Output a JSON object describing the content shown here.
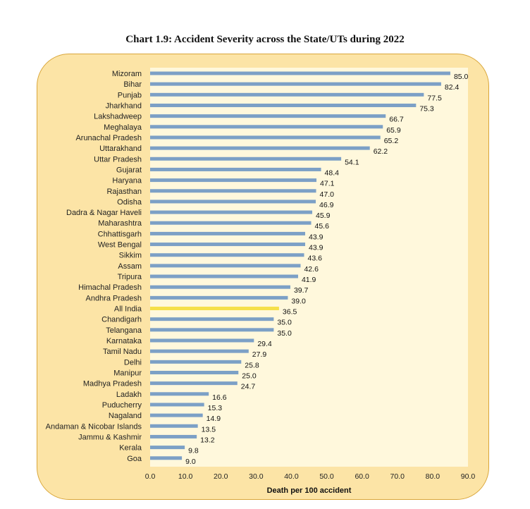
{
  "chart_data": {
    "type": "bar",
    "orientation": "horizontal",
    "title": "Chart 1.9: Accident Severity across the State/UTs during 2022",
    "xlabel": "Death per 100 accident",
    "ylabel": "",
    "xlim": [
      0,
      90
    ],
    "ticks": [
      "0.0",
      "10.0",
      "20.0",
      "30.0",
      "40.0",
      "50.0",
      "60.0",
      "70.0",
      "80.0",
      "90.0"
    ],
    "colors": {
      "bar": "#7ca0c6",
      "highlight": "#f5e04a",
      "plot_bg": "#fff8dc"
    },
    "highlight": "All India",
    "categories": [
      "Mizoram",
      "Bihar",
      "Punjab",
      "Jharkhand",
      "Lakshadweep",
      "Meghalaya",
      "Arunachal Pradesh",
      "Uttarakhand",
      "Uttar Pradesh",
      "Gujarat",
      "Haryana",
      "Rajasthan",
      "Odisha",
      "Dadra & Nagar Haveli",
      "Maharashtra",
      "Chhattisgarh",
      "West Bengal",
      "Sikkim",
      "Assam",
      "Tripura",
      "Himachal Pradesh",
      "Andhra Pradesh",
      "All India",
      "Chandigarh",
      "Telangana",
      "Karnataka",
      "Tamil Nadu",
      "Delhi",
      "Manipur",
      "Madhya Pradesh",
      "Ladakh",
      "Puducherry",
      "Nagaland",
      "Andaman & Nicobar Islands",
      "Jammu & Kashmir",
      "Kerala",
      "Goa"
    ],
    "values": [
      85.0,
      82.4,
      77.5,
      75.3,
      66.7,
      65.9,
      65.2,
      62.2,
      54.1,
      48.4,
      47.1,
      47.0,
      46.9,
      45.9,
      45.6,
      43.9,
      43.9,
      43.6,
      42.6,
      41.9,
      39.7,
      39.0,
      36.5,
      35.0,
      35.0,
      29.4,
      27.9,
      25.8,
      25.0,
      24.7,
      16.6,
      15.3,
      14.9,
      13.5,
      13.2,
      9.8,
      9.0
    ],
    "labels": [
      "85.0",
      "82.4",
      "77.5",
      "75.3",
      "66.7",
      "65.9",
      "65.2",
      "62.2",
      "54.1",
      "48.4",
      "47.1",
      "47.0",
      "46.9",
      "45.9",
      "45.6",
      "43.9",
      "43.9",
      "43.6",
      "42.6",
      "41.9",
      "39.7",
      "39.0",
      "36.5",
      "35.0",
      "35.0",
      "29.4",
      "27.9",
      "25.8",
      "25.0",
      "24.7",
      "16.6",
      "15.3",
      "14.9",
      "13.5",
      "13.2",
      "9.8",
      "9.0"
    ]
  }
}
